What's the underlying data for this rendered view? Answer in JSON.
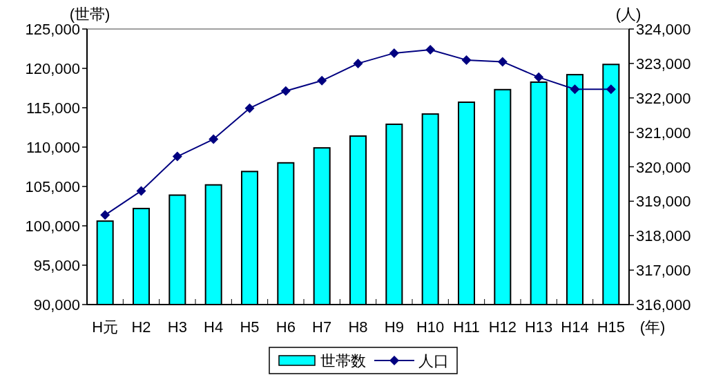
{
  "chart_data": {
    "type": "bar",
    "categories": [
      "H元",
      "H2",
      "H3",
      "H4",
      "H5",
      "H6",
      "H7",
      "H8",
      "H9",
      "H10",
      "H11",
      "H12",
      "H13",
      "H14",
      "H15"
    ],
    "series": [
      {
        "name": "世帯数",
        "color": "#00ffff",
        "values": [
          100600,
          102200,
          103900,
          105200,
          106900,
          108000,
          109900,
          111400,
          112900,
          114200,
          115700,
          117300,
          118250,
          119200,
          120500
        ]
      },
      {
        "name": "人口",
        "type": "line",
        "axis": "y2",
        "color": "#000080",
        "marker": "diamond",
        "values": [
          318600,
          319300,
          320300,
          320800,
          321700,
          322200,
          322500,
          323000,
          323300,
          323400,
          323100,
          323050,
          322600,
          322250,
          322250
        ]
      }
    ],
    "ylabel": "(世帯)",
    "y2label": "(人)",
    "xlabel": "(年)",
    "ylim": [
      90000,
      125000
    ],
    "yticks": [
      {
        "value": 90000,
        "label": "90,000"
      },
      {
        "value": 95000,
        "label": "95,000"
      },
      {
        "value": 100000,
        "label": "100,000"
      },
      {
        "value": 105000,
        "label": "105,000"
      },
      {
        "value": 110000,
        "label": "110,000"
      },
      {
        "value": 115000,
        "label": "115,000"
      },
      {
        "value": 120000,
        "label": "120,000"
      },
      {
        "value": 125000,
        "label": "125,000"
      }
    ],
    "y2lim": [
      316000,
      324000
    ],
    "y2ticks": [
      {
        "value": 316000,
        "label": "316,000"
      },
      {
        "value": 317000,
        "label": "317,000"
      },
      {
        "value": 318000,
        "label": "318,000"
      },
      {
        "value": 319000,
        "label": "319,000"
      },
      {
        "value": 320000,
        "label": "320,000"
      },
      {
        "value": 321000,
        "label": "321,000"
      },
      {
        "value": 322000,
        "label": "322,000"
      },
      {
        "value": 323000,
        "label": "323,000"
      },
      {
        "value": 324000,
        "label": "324,000"
      }
    ],
    "legend": "bottom",
    "grid": false
  }
}
